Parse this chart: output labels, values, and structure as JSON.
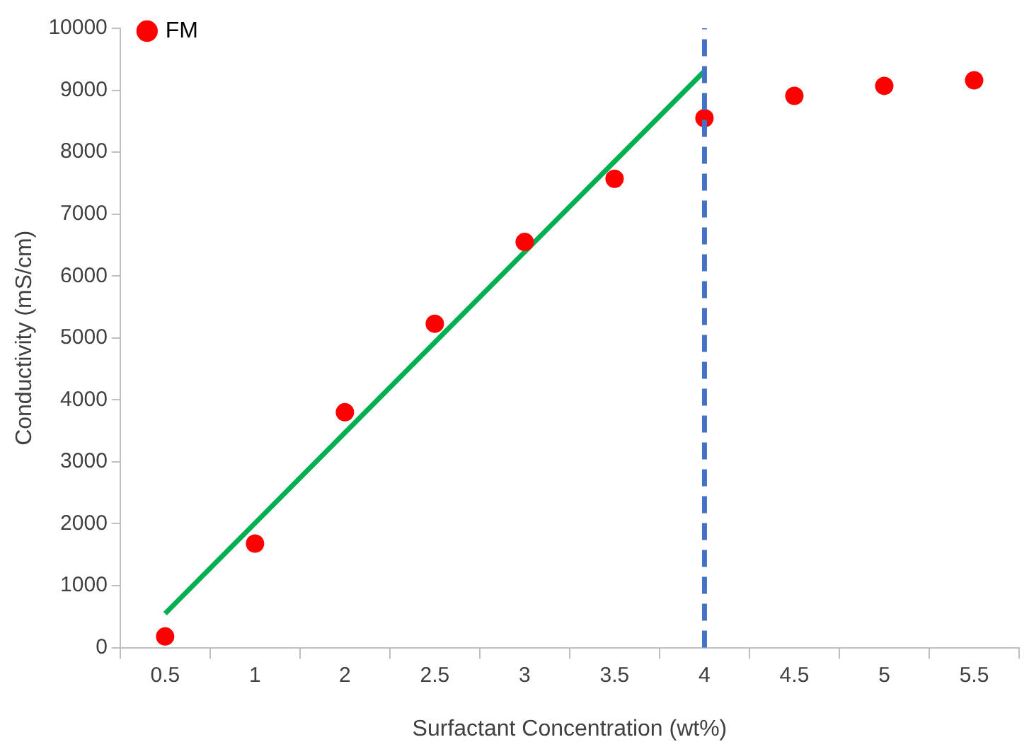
{
  "chart_data": {
    "type": "scatter",
    "xlabel": "Surfactant Concentration (wt%)",
    "ylabel": "Conductivity (mS/cm)",
    "categories": [
      "0.5",
      "1",
      "2",
      "2.5",
      "3",
      "3.5",
      "4",
      "4.5",
      "5",
      "5.5"
    ],
    "series": [
      {
        "name": "FM",
        "color": "#ff0000",
        "marker": "circle",
        "values": [
          180,
          1680,
          3800,
          5230,
          6550,
          7570,
          8550,
          8910,
          9070,
          9160
        ]
      },
      {
        "type": "line",
        "color": "#00b050",
        "marker": "none",
        "line_style": "solid",
        "values": [
          550,
          2010,
          3470,
          4930,
          6390,
          7850,
          9310,
          null,
          null,
          null
        ]
      }
    ],
    "ylim": [
      0,
      10000
    ],
    "yticks": [
      0,
      1000,
      2000,
      3000,
      4000,
      5000,
      6000,
      7000,
      8000,
      9000,
      10000
    ],
    "ref_lines": [
      {
        "axis": "x",
        "value": "4",
        "color": "#4472c4",
        "line_style": "dashed"
      }
    ],
    "grid": false,
    "legend": "top left"
  }
}
